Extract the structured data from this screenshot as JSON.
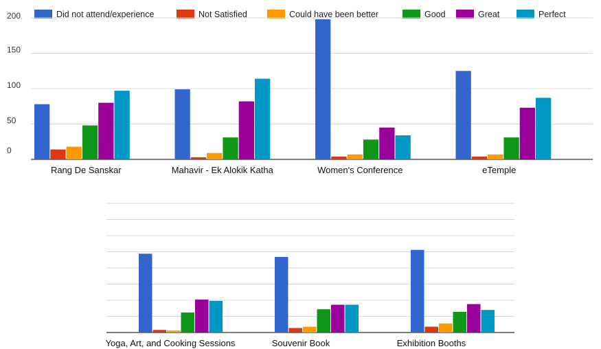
{
  "legend": [
    {
      "label": "Did not attend/experience",
      "color": "#3366CC"
    },
    {
      "label": "Not Satisfied",
      "color": "#DC3912"
    },
    {
      "label": "Could have been better",
      "color": "#FF9900"
    },
    {
      "label": "Good",
      "color": "#109618"
    },
    {
      "label": "Great",
      "color": "#990099"
    },
    {
      "label": "Perfect",
      "color": "#0099C6"
    }
  ],
  "chart_data": [
    {
      "type": "bar",
      "title": "",
      "xlabel": "",
      "ylabel": "",
      "ylim": [
        0,
        200
      ],
      "yticks": [
        "0",
        "50",
        "100",
        "150",
        "200"
      ],
      "grid": true,
      "legend_position": "top",
      "categories": [
        "Rang De Sanskar",
        "Mahavir - Ek Alokik Katha",
        "Women's Conference",
        "eTemple"
      ],
      "series": [
        {
          "name": "Did not attend/experience",
          "values": [
            78,
            99,
            198,
            125
          ]
        },
        {
          "name": "Not Satisfied",
          "values": [
            14,
            3,
            4,
            4
          ]
        },
        {
          "name": "Could have been better",
          "values": [
            18,
            9,
            7,
            7
          ]
        },
        {
          "name": "Good",
          "values": [
            48,
            31,
            28,
            31
          ]
        },
        {
          "name": "Great",
          "values": [
            80,
            82,
            45,
            73
          ]
        },
        {
          "name": "Perfect",
          "values": [
            97,
            114,
            34,
            87
          ]
        }
      ]
    },
    {
      "type": "bar",
      "title": "",
      "xlabel": "",
      "ylabel": "",
      "ylim": [
        0,
        200
      ],
      "grid": true,
      "categories": [
        "Yoga, Art, and Cooking Sessions",
        "Souvenir Book",
        "Exhibition Booths"
      ],
      "series": [
        {
          "name": "Did not attend/experience",
          "values": [
            122,
            117,
            128
          ]
        },
        {
          "name": "Not Satisfied",
          "values": [
            4,
            7,
            9
          ]
        },
        {
          "name": "Could have been better",
          "values": [
            3,
            9,
            14
          ]
        },
        {
          "name": "Good",
          "values": [
            31,
            36,
            32
          ]
        },
        {
          "name": "Great",
          "values": [
            51,
            43,
            44
          ]
        },
        {
          "name": "Perfect",
          "values": [
            49,
            43,
            35
          ]
        }
      ]
    }
  ]
}
